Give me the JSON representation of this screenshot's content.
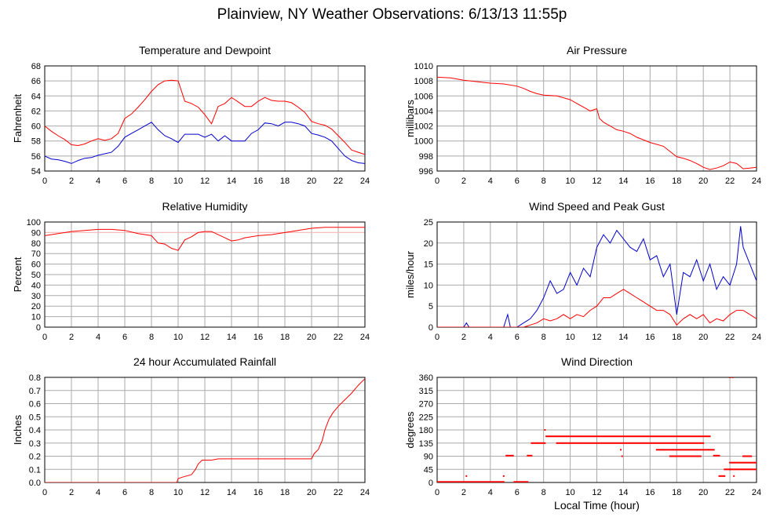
{
  "title": "Plainview, NY Weather Observations: 6/13/13 11:55p",
  "xlabel_bottom": "Local Time (hour)",
  "colors": {
    "red": "#ff0000",
    "blue": "#0000cc",
    "grid": "#aaaaaa",
    "pink": "#ffbbbb"
  },
  "chart_data": [
    {
      "type": "line",
      "title": "Temperature and Dewpoint",
      "ylabel": "Fahrenheit",
      "xlim": [
        0,
        24
      ],
      "ylim": [
        54,
        68
      ],
      "xticks": [
        0,
        2,
        4,
        6,
        8,
        10,
        12,
        14,
        16,
        18,
        20,
        22,
        24
      ],
      "yticks": [
        54,
        56,
        58,
        60,
        62,
        64,
        66,
        68
      ],
      "grid": true,
      "series": [
        {
          "color": "#ff0000",
          "x": [
            0,
            0.5,
            1,
            1.5,
            2,
            2.5,
            3,
            3.5,
            4,
            4.5,
            5,
            5.5,
            6,
            6.5,
            7,
            7.5,
            8,
            8.5,
            9,
            9.5,
            10,
            10.5,
            11,
            11.5,
            12,
            12.5,
            13,
            13.5,
            14,
            14.5,
            15,
            15.5,
            16,
            16.5,
            17,
            17.5,
            18,
            18.5,
            19,
            19.5,
            20,
            20.5,
            21,
            21.5,
            22,
            22.5,
            23,
            23.5,
            24
          ],
          "values": [
            60.0,
            59.3,
            58.7,
            58.2,
            57.5,
            57.4,
            57.6,
            58.0,
            58.3,
            58.1,
            58.3,
            59.0,
            61.0,
            61.6,
            62.5,
            63.5,
            64.6,
            65.5,
            66.0,
            66.1,
            66.0,
            63.3,
            63.0,
            62.5,
            61.5,
            60.3,
            62.6,
            63.0,
            63.8,
            63.2,
            62.6,
            62.6,
            63.3,
            63.8,
            63.4,
            63.3,
            63.3,
            63.1,
            62.5,
            61.8,
            60.6,
            60.3,
            60.1,
            59.6,
            58.7,
            57.8,
            56.8,
            56.5,
            56.2
          ]
        },
        {
          "color": "#0000cc",
          "x": [
            0,
            0.5,
            1,
            1.5,
            2,
            2.5,
            3,
            3.5,
            4,
            4.5,
            5,
            5.5,
            6,
            6.5,
            7,
            7.5,
            8,
            8.5,
            9,
            9.5,
            10,
            10.5,
            11,
            11.5,
            12,
            12.5,
            13,
            13.5,
            14,
            14.5,
            15,
            15.5,
            16,
            16.5,
            17,
            17.5,
            18,
            18.5,
            19,
            19.5,
            20,
            20.5,
            21,
            21.5,
            22,
            22.5,
            23,
            23.5,
            24
          ],
          "values": [
            56.0,
            55.6,
            55.5,
            55.3,
            55.0,
            55.4,
            55.7,
            55.8,
            56.1,
            56.3,
            56.5,
            57.3,
            58.5,
            59.0,
            59.5,
            60.0,
            60.5,
            59.5,
            58.7,
            58.3,
            57.8,
            58.9,
            58.9,
            58.9,
            58.5,
            58.9,
            58.0,
            58.7,
            58.0,
            58.0,
            58.0,
            59.0,
            59.5,
            60.4,
            60.3,
            60.0,
            60.5,
            60.5,
            60.3,
            60.0,
            59.0,
            58.8,
            58.5,
            58.0,
            57.0,
            56.0,
            55.4,
            55.1,
            55.0
          ]
        }
      ]
    },
    {
      "type": "line",
      "title": "Air Pressure",
      "ylabel": "millibars",
      "xlim": [
        0,
        24
      ],
      "ylim": [
        996,
        1010
      ],
      "xticks": [
        0,
        2,
        4,
        6,
        8,
        10,
        12,
        14,
        16,
        18,
        20,
        22,
        24
      ],
      "yticks": [
        996,
        998,
        1000,
        1002,
        1004,
        1006,
        1008,
        1010
      ],
      "grid": true,
      "series": [
        {
          "color": "#ff0000",
          "x": [
            0,
            1,
            2,
            3,
            4,
            5,
            6,
            6.5,
            7,
            7.5,
            8,
            9,
            10,
            10.5,
            11,
            11.5,
            12,
            12.2,
            12.5,
            13,
            13.5,
            14,
            14.5,
            15,
            16,
            17,
            17.5,
            18,
            18.5,
            19,
            19.5,
            20,
            20.5,
            21,
            21.5,
            22,
            22.5,
            23,
            23.5,
            24
          ],
          "values": [
            1008.5,
            1008.4,
            1008.1,
            1007.9,
            1007.7,
            1007.6,
            1007.3,
            1007.0,
            1006.6,
            1006.3,
            1006.1,
            1006.0,
            1005.5,
            1005.0,
            1004.5,
            1004.0,
            1004.3,
            1003.0,
            1002.5,
            1002.0,
            1001.5,
            1001.3,
            1001.0,
            1000.5,
            999.8,
            999.3,
            998.6,
            997.9,
            997.7,
            997.4,
            997.0,
            996.5,
            996.2,
            996.4,
            996.7,
            997.2,
            997.0,
            996.3,
            996.4,
            996.5
          ]
        }
      ]
    },
    {
      "type": "line",
      "title": "Relative Humidity",
      "ylabel": "Percent",
      "xlim": [
        0,
        24
      ],
      "ylim": [
        0,
        100
      ],
      "xticks": [
        0,
        2,
        4,
        6,
        8,
        10,
        12,
        14,
        16,
        18,
        20,
        22,
        24
      ],
      "yticks": [
        0,
        10,
        20,
        30,
        40,
        50,
        60,
        70,
        80,
        90,
        100
      ],
      "grid": true,
      "reference_line": 90,
      "series": [
        {
          "color": "#ff0000",
          "x": [
            0,
            1,
            2,
            3,
            4,
            5,
            6,
            7,
            8,
            8.5,
            9,
            9.5,
            10,
            10.5,
            11,
            11.5,
            12,
            12.5,
            13,
            13.5,
            14,
            14.5,
            15,
            16,
            17,
            18,
            19,
            20,
            21,
            22,
            23,
            24
          ],
          "values": [
            87,
            89,
            91,
            92,
            93,
            93,
            92,
            89,
            87,
            80,
            79,
            75,
            73,
            83,
            86,
            90,
            91,
            91,
            88,
            85,
            82,
            83,
            85,
            87,
            88,
            90,
            92,
            94,
            95,
            95,
            95,
            95
          ]
        }
      ]
    },
    {
      "type": "line",
      "title": "Wind Speed and Peak Gust",
      "ylabel": "miles/hour",
      "xlim": [
        0,
        24
      ],
      "ylim": [
        0,
        25
      ],
      "xticks": [
        0,
        2,
        4,
        6,
        8,
        10,
        12,
        14,
        16,
        18,
        20,
        22,
        24
      ],
      "yticks": [
        0,
        5,
        10,
        15,
        20,
        25
      ],
      "grid": true,
      "series": [
        {
          "color": "#0000cc",
          "x": [
            0,
            1,
            2,
            2.2,
            2.4,
            3,
            4,
            5,
            5.3,
            5.5,
            6,
            6.5,
            7,
            7.5,
            8,
            8.5,
            9,
            9.5,
            10,
            10.5,
            11,
            11.5,
            12,
            12.5,
            13,
            13.5,
            14,
            14.5,
            15,
            15.5,
            16,
            16.5,
            17,
            17.5,
            18,
            18.5,
            19,
            19.5,
            20,
            20.5,
            21,
            21.5,
            22,
            22.5,
            22.8,
            23,
            23.5,
            24
          ],
          "values": [
            0,
            0,
            0,
            1,
            0,
            0,
            0,
            0,
            3,
            0,
            0,
            1,
            2,
            4,
            7,
            11,
            8,
            9,
            13,
            10,
            14,
            12,
            19,
            22,
            20,
            23,
            21,
            19,
            18,
            21,
            16,
            17,
            12,
            15,
            3,
            13,
            12,
            16,
            11,
            15,
            9,
            12,
            10,
            15,
            24,
            19,
            15,
            11
          ]
        },
        {
          "color": "#ff0000",
          "x": [
            0,
            1,
            2,
            3,
            4,
            5,
            6,
            6.5,
            7,
            7.5,
            8,
            8.5,
            9,
            9.5,
            10,
            10.5,
            11,
            11.5,
            12,
            12.5,
            13,
            13.5,
            14,
            14.5,
            15,
            15.5,
            16,
            16.5,
            17,
            17.5,
            18,
            18.5,
            19,
            19.5,
            20,
            20.5,
            21,
            21.5,
            22,
            22.5,
            23,
            23.5,
            24
          ],
          "values": [
            0,
            0,
            0,
            0,
            0,
            0,
            0,
            0,
            0.5,
            1,
            2,
            1.5,
            2,
            3,
            2,
            3,
            2.5,
            4,
            5,
            7,
            7,
            8,
            9,
            8,
            7,
            6,
            5,
            4,
            4,
            3,
            0.5,
            2,
            3,
            2,
            3,
            1,
            2,
            1.5,
            3,
            4,
            4,
            3,
            2
          ]
        }
      ]
    },
    {
      "type": "line",
      "title": "24 hour Accumulated Rainfall",
      "ylabel": "Inches",
      "xlim": [
        0,
        24
      ],
      "ylim": [
        0,
        0.8
      ],
      "xticks": [
        0,
        2,
        4,
        6,
        8,
        10,
        12,
        14,
        16,
        18,
        20,
        22,
        24
      ],
      "yticks": [
        0.0,
        0.1,
        0.2,
        0.3,
        0.4,
        0.5,
        0.6,
        0.7,
        0.8
      ],
      "ytick_labels": [
        "0.0",
        "0.1",
        "0.2",
        "0.3",
        "0.4",
        "0.5",
        "0.6",
        "0.7",
        "0.8"
      ],
      "grid": true,
      "series": [
        {
          "color": "#ff0000",
          "x": [
            0,
            2,
            4,
            6,
            8,
            9.9,
            10,
            10.3,
            11,
            11.3,
            11.5,
            11.8,
            12,
            12.5,
            13,
            14,
            16,
            18,
            20,
            20.2,
            20.5,
            20.8,
            21,
            21.3,
            21.6,
            22,
            22.5,
            23,
            23.5,
            24
          ],
          "values": [
            0,
            0,
            0,
            0,
            0,
            0,
            0.03,
            0.04,
            0.06,
            0.1,
            0.14,
            0.17,
            0.17,
            0.17,
            0.18,
            0.18,
            0.18,
            0.18,
            0.18,
            0.22,
            0.25,
            0.32,
            0.4,
            0.48,
            0.53,
            0.58,
            0.63,
            0.68,
            0.74,
            0.79
          ]
        }
      ]
    },
    {
      "type": "scatter",
      "title": "Wind Direction",
      "ylabel": "degrees",
      "xlabel": "Local Time (hour)",
      "xlim": [
        0,
        24
      ],
      "ylim": [
        0,
        360
      ],
      "xticks": [
        0,
        2,
        4,
        6,
        8,
        10,
        12,
        14,
        16,
        18,
        20,
        22,
        24
      ],
      "yticks": [
        0,
        45,
        90,
        135,
        180,
        225,
        270,
        315,
        360
      ],
      "grid": true,
      "series": [
        {
          "color": "#ff0000",
          "runs": [
            {
              "x0": 0.0,
              "x1": 5.0,
              "y": 2
            },
            {
              "x0": 5.2,
              "x1": 5.7,
              "y": 92
            },
            {
              "x0": 5.8,
              "x1": 6.8,
              "y": 2
            },
            {
              "x0": 6.8,
              "x1": 7.1,
              "y": 92
            },
            {
              "x0": 7.1,
              "x1": 8.1,
              "y": 135
            },
            {
              "x0": 8.2,
              "x1": 20.5,
              "y": 158
            },
            {
              "x0": 9.0,
              "x1": 20.0,
              "y": 135
            },
            {
              "x0": 16.5,
              "x1": 20.8,
              "y": 112
            },
            {
              "x0": 17.5,
              "x1": 19.8,
              "y": 90
            },
            {
              "x0": 20.8,
              "x1": 21.2,
              "y": 92
            },
            {
              "x0": 21.2,
              "x1": 21.6,
              "y": 22
            },
            {
              "x0": 21.6,
              "x1": 22.0,
              "y": 45
            },
            {
              "x0": 22.0,
              "x1": 24.0,
              "y": 68
            },
            {
              "x0": 22.0,
              "x1": 24.0,
              "y": 45
            },
            {
              "x0": 23.0,
              "x1": 23.6,
              "y": 90
            }
          ],
          "points": [
            {
              "x": 2.2,
              "y": 22
            },
            {
              "x": 5.0,
              "y": 22
            },
            {
              "x": 8.1,
              "y": 180
            },
            {
              "x": 13.8,
              "y": 112
            },
            {
              "x": 13.9,
              "y": 90
            },
            {
              "x": 22.0,
              "y": 360
            },
            {
              "x": 22.2,
              "y": 360
            },
            {
              "x": 22.3,
              "y": 22
            }
          ]
        }
      ]
    }
  ]
}
